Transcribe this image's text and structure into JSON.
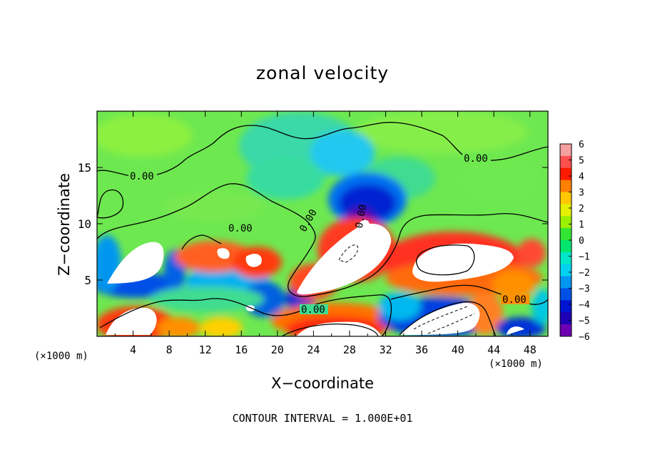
{
  "chart_data": {
    "type": "heatmap",
    "title": "zonal velocity",
    "xlabel": "X−coordinate",
    "ylabel": "Z−coordinate",
    "x_unit_label": "(×1000 m)",
    "x_ticks": [
      4,
      8,
      12,
      16,
      20,
      24,
      28,
      32,
      36,
      40,
      44,
      48
    ],
    "y_ticks": [
      5,
      10,
      15
    ],
    "xlim": [
      0,
      50
    ],
    "ylim": [
      0,
      20
    ],
    "colorbar": {
      "ticks": [
        "6",
        "5",
        "4",
        "3",
        "2",
        "1",
        "0",
        "−1",
        "−2",
        "−3",
        "−4",
        "−5",
        "−6"
      ],
      "range": [
        -6,
        6
      ],
      "colors": [
        "#f5a0a0",
        "#ff4f4f",
        "#ff1a00",
        "#ff8000",
        "#ffc800",
        "#e6f000",
        "#9bf000",
        "#33e633",
        "#00e66e",
        "#00e6c8",
        "#00d2f0",
        "#0096f0",
        "#0050e6",
        "#0014d2",
        "#1e00b4",
        "#6e00b4"
      ]
    },
    "contour_labels": [
      "0.00",
      "0.00",
      "0.00",
      "0.00",
      "0.00",
      "0.00",
      "0.00"
    ],
    "contour_interval_text": "CONTOUR INTERVAL = 1.000E+01"
  }
}
